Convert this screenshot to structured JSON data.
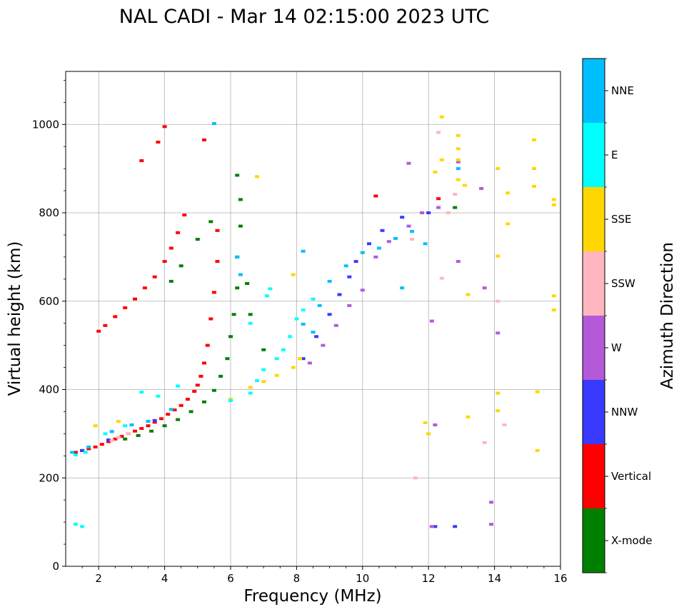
{
  "chart_data": {
    "type": "scatter",
    "title": "NAL CADI - Mar 14 02:15:00 2023 UTC",
    "xlabel": "Frequency (MHz)",
    "ylabel": "Virtual height (km)",
    "xlim": [
      1,
      16
    ],
    "ylim": [
      0,
      1120
    ],
    "xticks": [
      2,
      4,
      6,
      8,
      10,
      12,
      14,
      16
    ],
    "xtick_labels": [
      "2",
      "4",
      "6",
      "8",
      "10",
      "12",
      "14",
      "16"
    ],
    "yticks": [
      0,
      200,
      400,
      600,
      800,
      1000
    ],
    "ytick_labels": [
      "0",
      "200",
      "400",
      "600",
      "800",
      "1000"
    ],
    "grid": true,
    "colorbar": {
      "label": "Azimuth Direction",
      "entries": [
        {
          "name": "X-mode",
          "color": "#008000"
        },
        {
          "name": "Vertical",
          "color": "#ff0000"
        },
        {
          "name": "NNW",
          "color": "#3a3aff"
        },
        {
          "name": "W",
          "color": "#b45ad8"
        },
        {
          "name": "SSW",
          "color": "#ffb6c1"
        },
        {
          "name": "SSE",
          "color": "#ffd700"
        },
        {
          "name": "E",
          "color": "#00ffff"
        },
        {
          "name": "NNE",
          "color": "#00bfff"
        }
      ]
    },
    "series": [
      {
        "name": "Vertical",
        "color": "#ff0000",
        "points": [
          [
            1.3,
            258
          ],
          [
            1.5,
            262
          ],
          [
            1.7,
            266
          ],
          [
            1.9,
            270
          ],
          [
            2.1,
            276
          ],
          [
            2.3,
            282
          ],
          [
            2.5,
            288
          ],
          [
            2.7,
            294
          ],
          [
            2.9,
            300
          ],
          [
            3.1,
            306
          ],
          [
            3.3,
            312
          ],
          [
            3.5,
            318
          ],
          [
            3.7,
            326
          ],
          [
            3.9,
            334
          ],
          [
            4.1,
            344
          ],
          [
            4.3,
            354
          ],
          [
            4.5,
            364
          ],
          [
            4.7,
            378
          ],
          [
            4.9,
            396
          ],
          [
            5.0,
            410
          ],
          [
            5.1,
            430
          ],
          [
            5.2,
            460
          ],
          [
            5.3,
            500
          ],
          [
            5.4,
            560
          ],
          [
            5.5,
            620
          ],
          [
            5.6,
            690
          ],
          [
            5.6,
            760
          ],
          [
            2.0,
            532
          ],
          [
            2.2,
            545
          ],
          [
            2.5,
            565
          ],
          [
            2.8,
            585
          ],
          [
            3.1,
            605
          ],
          [
            3.4,
            630
          ],
          [
            3.7,
            655
          ],
          [
            4.0,
            690
          ],
          [
            4.2,
            720
          ],
          [
            4.4,
            755
          ],
          [
            4.6,
            795
          ],
          [
            3.3,
            918
          ],
          [
            4.0,
            995
          ],
          [
            3.8,
            960
          ],
          [
            5.2,
            965
          ],
          [
            10.4,
            838
          ],
          [
            12.3,
            832
          ]
        ]
      },
      {
        "name": "X-mode",
        "color": "#008000",
        "points": [
          [
            2.8,
            288
          ],
          [
            3.2,
            296
          ],
          [
            3.6,
            306
          ],
          [
            4.0,
            318
          ],
          [
            4.4,
            332
          ],
          [
            4.8,
            350
          ],
          [
            5.2,
            372
          ],
          [
            5.5,
            398
          ],
          [
            5.7,
            430
          ],
          [
            5.9,
            470
          ],
          [
            6.0,
            520
          ],
          [
            6.1,
            570
          ],
          [
            6.2,
            630
          ],
          [
            6.2,
            700
          ],
          [
            6.3,
            770
          ],
          [
            6.3,
            830
          ],
          [
            6.2,
            885
          ],
          [
            4.2,
            645
          ],
          [
            4.5,
            680
          ],
          [
            5.0,
            740
          ],
          [
            5.4,
            780
          ],
          [
            6.5,
            640
          ],
          [
            6.6,
            570
          ],
          [
            7.0,
            490
          ],
          [
            12.8,
            812
          ]
        ]
      },
      {
        "name": "NNW",
        "color": "#3a3aff",
        "points": [
          [
            1.5,
            262
          ],
          [
            2.3,
            286
          ],
          [
            3.7,
            330
          ],
          [
            8.2,
            470
          ],
          [
            8.6,
            520
          ],
          [
            9.0,
            570
          ],
          [
            9.3,
            615
          ],
          [
            9.6,
            655
          ],
          [
            9.8,
            690
          ],
          [
            10.2,
            730
          ],
          [
            10.6,
            760
          ],
          [
            11.2,
            790
          ],
          [
            12.0,
            800
          ],
          [
            12.8,
            90
          ],
          [
            12.2,
            90
          ]
        ]
      },
      {
        "name": "W",
        "color": "#b45ad8",
        "points": [
          [
            8.4,
            460
          ],
          [
            8.8,
            500
          ],
          [
            9.2,
            545
          ],
          [
            9.6,
            590
          ],
          [
            10.0,
            625
          ],
          [
            10.4,
            700
          ],
          [
            10.8,
            735
          ],
          [
            11.4,
            770
          ],
          [
            11.8,
            800
          ],
          [
            12.3,
            812
          ],
          [
            12.9,
            915
          ],
          [
            12.9,
            690
          ],
          [
            13.6,
            855
          ],
          [
            13.7,
            630
          ],
          [
            14.1,
            528
          ],
          [
            13.9,
            145
          ],
          [
            13.9,
            95
          ],
          [
            12.2,
            320
          ],
          [
            12.1,
            555
          ],
          [
            12.1,
            90
          ],
          [
            11.4,
            912
          ]
        ]
      },
      {
        "name": "SSW",
        "color": "#ffb6c1",
        "points": [
          [
            2.4,
            285
          ],
          [
            2.6,
            292
          ],
          [
            2.9,
            300
          ],
          [
            12.3,
            982
          ],
          [
            12.6,
            800
          ],
          [
            12.8,
            842
          ],
          [
            14.1,
            600
          ],
          [
            14.3,
            320
          ],
          [
            13.7,
            280
          ],
          [
            11.6,
            200
          ],
          [
            11.5,
            740
          ],
          [
            12.4,
            652
          ]
        ]
      },
      {
        "name": "SSE",
        "color": "#ffd700",
        "points": [
          [
            1.9,
            318
          ],
          [
            2.6,
            328
          ],
          [
            6.0,
            378
          ],
          [
            6.6,
            405
          ],
          [
            7.0,
            418
          ],
          [
            7.4,
            432
          ],
          [
            7.9,
            450
          ],
          [
            8.1,
            470
          ],
          [
            15.2,
            965
          ],
          [
            15.2,
            900
          ],
          [
            15.2,
            860
          ],
          [
            15.3,
            395
          ],
          [
            15.3,
            262
          ],
          [
            15.8,
            830
          ],
          [
            15.8,
            818
          ],
          [
            15.8,
            612
          ],
          [
            15.8,
            580
          ],
          [
            13.2,
            615
          ],
          [
            13.2,
            338
          ],
          [
            14.1,
            392
          ],
          [
            14.1,
            352
          ],
          [
            14.1,
            702
          ],
          [
            14.1,
            900
          ],
          [
            14.4,
            845
          ],
          [
            14.4,
            775
          ],
          [
            12.4,
            1017
          ],
          [
            12.4,
            920
          ],
          [
            12.9,
            975
          ],
          [
            12.9,
            945
          ],
          [
            12.9,
            920
          ],
          [
            12.9,
            875
          ],
          [
            13.1,
            862
          ],
          [
            11.9,
            325
          ],
          [
            12.0,
            300
          ],
          [
            12.2,
            892
          ],
          [
            7.9,
            660
          ],
          [
            6.8,
            882
          ]
        ]
      },
      {
        "name": "E",
        "color": "#00ffff",
        "points": [
          [
            1.3,
            252
          ],
          [
            1.6,
            258
          ],
          [
            2.2,
            300
          ],
          [
            2.8,
            318
          ],
          [
            3.3,
            394
          ],
          [
            3.8,
            385
          ],
          [
            4.4,
            408
          ],
          [
            6.6,
            392
          ],
          [
            6.8,
            420
          ],
          [
            7.0,
            445
          ],
          [
            7.4,
            470
          ],
          [
            7.6,
            490
          ],
          [
            7.8,
            520
          ],
          [
            8.0,
            560
          ],
          [
            8.2,
            580
          ],
          [
            8.5,
            605
          ],
          [
            7.1,
            612
          ],
          [
            7.2,
            628
          ],
          [
            6.6,
            550
          ],
          [
            1.3,
            95
          ],
          [
            1.5,
            90
          ],
          [
            6.0,
            375
          ]
        ]
      },
      {
        "name": "NNE",
        "color": "#00bfff",
        "points": [
          [
            1.2,
            258
          ],
          [
            1.7,
            270
          ],
          [
            2.4,
            305
          ],
          [
            3.0,
            320
          ],
          [
            3.5,
            328
          ],
          [
            4.2,
            355
          ],
          [
            5.5,
            1002
          ],
          [
            6.2,
            700
          ],
          [
            6.3,
            660
          ],
          [
            8.2,
            548
          ],
          [
            8.5,
            530
          ],
          [
            8.7,
            590
          ],
          [
            9.0,
            645
          ],
          [
            9.5,
            680
          ],
          [
            10.0,
            710
          ],
          [
            10.5,
            720
          ],
          [
            11.0,
            742
          ],
          [
            11.5,
            758
          ],
          [
            11.9,
            730
          ],
          [
            8.2,
            713
          ],
          [
            11.2,
            630
          ],
          [
            12.9,
            900
          ]
        ]
      }
    ]
  }
}
